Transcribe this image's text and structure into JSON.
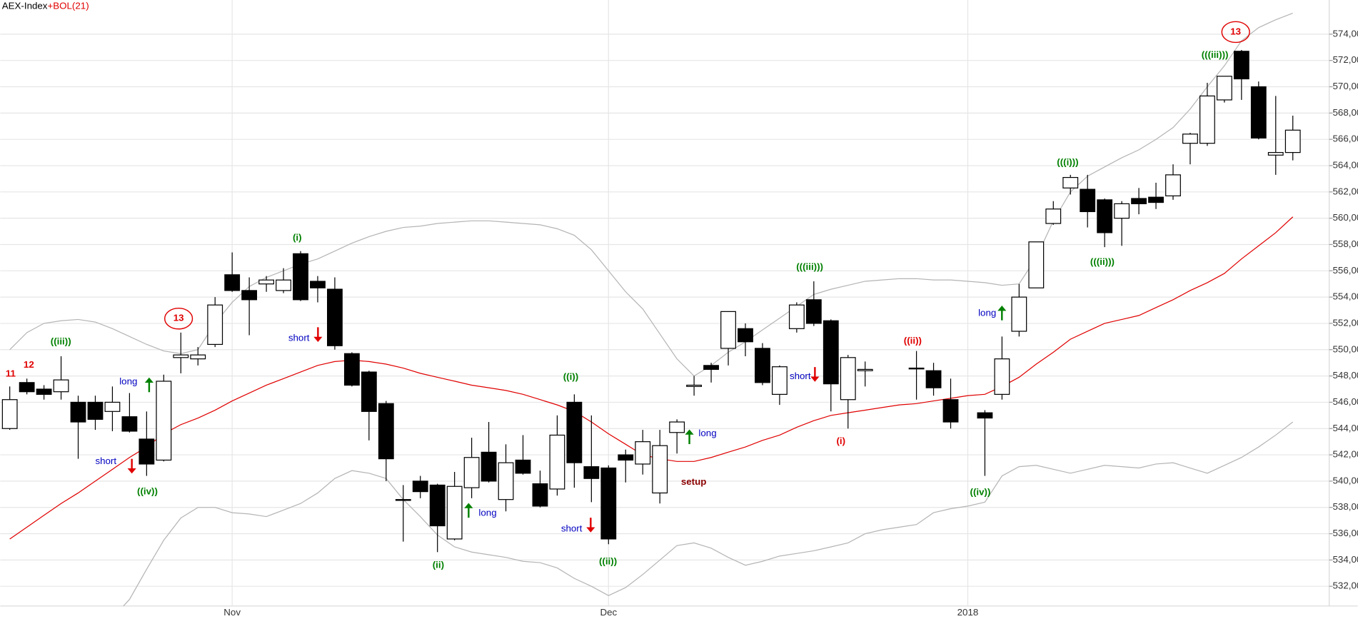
{
  "chart_data": {
    "type": "candlestick",
    "title": "AEX-Index",
    "indicator": "+BOL(21)",
    "title_color": "#000000",
    "indicator_color": "#e00000",
    "categories": [
      null,
      null,
      null,
      null,
      null,
      null,
      null,
      null,
      null,
      null,
      null,
      null,
      null,
      "Nov",
      null,
      null,
      null,
      null,
      null,
      null,
      null,
      null,
      null,
      null,
      null,
      null,
      null,
      null,
      null,
      null,
      null,
      null,
      null,
      null,
      null,
      "Dec",
      null,
      null,
      null,
      null,
      null,
      null,
      null,
      null,
      null,
      null,
      null,
      null,
      null,
      null,
      null,
      null,
      null,
      null,
      null,
      null,
      "2018",
      null,
      null,
      null,
      null,
      null,
      null,
      null,
      null,
      null,
      null,
      null,
      null,
      null,
      null,
      null,
      null,
      null,
      null,
      null
    ],
    "open": [
      544.0,
      547.5,
      547.0,
      546.8,
      546.0,
      546.0,
      545.3,
      544.9,
      543.2,
      541.6,
      549.4,
      549.3,
      550.4,
      555.7,
      554.5,
      555.0,
      554.5,
      557.3,
      555.2,
      554.6,
      549.7,
      548.3,
      545.9,
      538.6,
      540.0,
      539.7,
      535.6,
      539.5,
      542.2,
      538.6,
      541.6,
      539.8,
      539.4,
      546.0,
      541.1,
      541.0,
      542.0,
      541.3,
      539.1,
      543.7,
      547.2,
      548.8,
      550.1,
      551.6,
      550.1,
      546.6,
      551.6,
      553.8,
      552.2,
      546.2,
      548.4,
      null,
      null,
      548.6,
      548.4,
      546.2,
      null,
      545.2,
      546.6,
      551.4,
      554.7,
      559.6,
      562.3,
      562.2,
      561.4,
      560.0,
      561.5,
      561.6,
      561.7,
      565.7,
      565.7,
      569.0,
      572.7,
      570.0,
      564.8,
      565.0
    ],
    "high": [
      547.2,
      547.8,
      547.3,
      549.5,
      546.5,
      546.5,
      547.2,
      546.7,
      545.3,
      548.1,
      551.3,
      550.2,
      554.0,
      557.4,
      555.5,
      555.6,
      556.2,
      557.5,
      555.6,
      555.5,
      549.8,
      548.4,
      546.1,
      539.7,
      540.4,
      539.8,
      540.7,
      543.3,
      544.5,
      542.8,
      543.5,
      540.8,
      545.0,
      546.6,
      545.0,
      541.2,
      542.4,
      543.9,
      543.9,
      544.7,
      548.0,
      549.0,
      552.9,
      552.0,
      550.5,
      548.8,
      553.6,
      555.2,
      552.3,
      549.6,
      549.1,
      null,
      null,
      549.9,
      549.0,
      547.8,
      null,
      545.4,
      551.0,
      555.0,
      558.2,
      561.3,
      563.3,
      563.3,
      561.5,
      561.3,
      562.3,
      562.7,
      564.1,
      566.5,
      570.3,
      570.8,
      572.8,
      570.4,
      569.3,
      567.8
    ],
    "low": [
      543.9,
      546.6,
      546.2,
      546.2,
      541.7,
      543.9,
      543.8,
      543.7,
      540.4,
      541.5,
      548.2,
      548.8,
      550.2,
      554.4,
      551.1,
      554.4,
      554.3,
      553.7,
      553.6,
      550.0,
      547.2,
      543.1,
      540.0,
      535.4,
      538.7,
      534.6,
      535.5,
      538.7,
      539.9,
      537.7,
      540.5,
      538.0,
      538.9,
      539.5,
      538.4,
      535.2,
      539.9,
      540.5,
      538.3,
      542.1,
      546.5,
      547.5,
      548.8,
      549.5,
      547.3,
      545.8,
      551.3,
      551.8,
      545.3,
      544.0,
      547.2,
      null,
      null,
      546.2,
      546.5,
      544.0,
      null,
      540.4,
      546.2,
      551.0,
      554.7,
      559.5,
      561.8,
      559.3,
      557.8,
      557.9,
      560.3,
      560.7,
      561.4,
      564.1,
      565.5,
      568.8,
      569.0,
      566.0,
      563.3,
      564.4
    ],
    "close": [
      546.2,
      546.8,
      546.6,
      547.7,
      544.5,
      544.7,
      546.0,
      543.8,
      541.3,
      547.6,
      549.6,
      549.6,
      553.4,
      554.5,
      553.8,
      555.3,
      555.3,
      553.8,
      554.7,
      550.3,
      547.3,
      545.3,
      541.7,
      538.55,
      539.2,
      536.6,
      539.6,
      541.8,
      540.0,
      541.4,
      540.6,
      538.1,
      543.5,
      541.4,
      540.2,
      535.6,
      541.6,
      543.0,
      542.7,
      544.5,
      547.3,
      548.5,
      552.9,
      550.6,
      547.5,
      548.7,
      553.4,
      552.0,
      547.4,
      549.4,
      548.5,
      null,
      null,
      548.6,
      547.1,
      544.5,
      null,
      544.8,
      549.3,
      554.0,
      558.2,
      560.7,
      563.1,
      560.5,
      558.9,
      561.1,
      561.1,
      561.2,
      563.3,
      566.4,
      569.3,
      570.8,
      570.6,
      566.1,
      565.0,
      566.7
    ],
    "bands": {
      "middle_color": "#e00000",
      "band_color": "#b4b4b4",
      "middle": [
        535.6,
        536.5,
        537.4,
        538.3,
        539.1,
        540.0,
        540.9,
        541.8,
        542.6,
        543.6,
        544.3,
        544.8,
        545.4,
        546.1,
        546.7,
        547.3,
        547.8,
        548.3,
        548.8,
        549.1,
        549.2,
        549.1,
        548.9,
        548.6,
        548.2,
        547.9,
        547.6,
        547.3,
        547.1,
        546.9,
        546.6,
        546.2,
        545.8,
        545.3,
        544.5,
        543.6,
        542.8,
        542.0,
        541.7,
        541.5,
        541.5,
        541.8,
        542.2,
        542.6,
        543.1,
        543.5,
        544.1,
        544.6,
        545.0,
        545.2,
        545.4,
        545.6,
        545.8,
        545.9,
        546.1,
        546.3,
        546.5,
        546.6,
        547.2,
        547.9,
        548.9,
        549.8,
        550.8,
        551.4,
        552.0,
        552.3,
        552.6,
        553.2,
        553.8,
        554.5,
        555.1,
        555.8,
        556.9,
        557.9,
        558.9,
        560.1
      ],
      "upper": [
        550.0,
        551.3,
        552.0,
        552.2,
        552.3,
        552.1,
        551.6,
        551.0,
        550.4,
        549.9,
        549.7,
        550.0,
        552.0,
        553.6,
        554.8,
        555.5,
        556.0,
        556.5,
        556.9,
        557.5,
        558.1,
        558.6,
        559.0,
        559.3,
        559.4,
        559.6,
        559.7,
        559.8,
        559.8,
        559.7,
        559.6,
        559.5,
        559.2,
        558.7,
        557.6,
        556.0,
        554.4,
        553.1,
        551.2,
        549.3,
        548.0,
        548.8,
        549.8,
        550.6,
        551.5,
        552.4,
        553.3,
        554.2,
        554.6,
        554.9,
        555.2,
        555.3,
        555.4,
        555.4,
        555.3,
        555.3,
        555.2,
        555.1,
        554.9,
        555.0,
        557.0,
        559.8,
        562.0,
        563.2,
        563.9,
        564.6,
        565.2,
        566.0,
        566.9,
        568.3,
        570.0,
        571.6,
        573.5,
        574.5,
        575.1,
        575.6
      ],
      "lower": [
        null,
        null,
        null,
        null,
        null,
        null,
        529.6,
        531.0,
        533.3,
        535.5,
        537.2,
        538.0,
        538.0,
        537.6,
        537.5,
        537.3,
        537.8,
        538.3,
        539.1,
        540.2,
        540.8,
        540.6,
        540.2,
        538.6,
        537.3,
        535.9,
        535.0,
        534.6,
        534.4,
        534.2,
        533.9,
        533.8,
        533.4,
        532.6,
        532.0,
        531.3,
        531.9,
        532.9,
        534.0,
        535.1,
        535.3,
        534.9,
        534.2,
        533.6,
        533.9,
        534.3,
        534.5,
        534.7,
        535.0,
        535.3,
        536.0,
        536.3,
        536.5,
        536.7,
        537.6,
        537.9,
        538.1,
        538.4,
        540.4,
        541.1,
        541.2,
        540.9,
        540.6,
        540.9,
        541.2,
        541.1,
        541.0,
        541.3,
        541.4,
        541.0,
        540.6,
        541.2,
        541.8,
        542.6,
        543.5,
        544.5
      ]
    },
    "ylim": [
      530.5,
      576.6
    ],
    "yticks": [
      {
        "value": 532,
        "label": "532,00"
      },
      {
        "value": 534,
        "label": "534,00"
      },
      {
        "value": 536,
        "label": "536,00"
      },
      {
        "value": 538,
        "label": "538,00"
      },
      {
        "value": 540,
        "label": "540,00"
      },
      {
        "value": 542,
        "label": "542,00"
      },
      {
        "value": 544,
        "label": "544,00"
      },
      {
        "value": 546,
        "label": "546,00"
      },
      {
        "value": 548,
        "label": "548,00"
      },
      {
        "value": 550,
        "label": "550,00"
      },
      {
        "value": 552,
        "label": "552,00"
      },
      {
        "value": 554,
        "label": "554,00"
      },
      {
        "value": 556,
        "label": "556,00"
      },
      {
        "value": 558,
        "label": "558,00"
      },
      {
        "value": 560,
        "label": "560,00"
      },
      {
        "value": 562,
        "label": "562,00"
      },
      {
        "value": 564,
        "label": "564,00"
      },
      {
        "value": 566,
        "label": "566,00"
      },
      {
        "value": 568,
        "label": "568,00"
      },
      {
        "value": 570,
        "label": "570,00"
      },
      {
        "value": 572,
        "label": "572,00"
      },
      {
        "value": 574,
        "label": "574,00"
      }
    ],
    "grid": true,
    "up_color": "#ffffff",
    "down_color": "#000000",
    "annotations": [
      {
        "text": "11",
        "color": "#e00000"
      },
      {
        "text": "12",
        "color": "#e00000"
      },
      {
        "text": "((iii))",
        "color": "#008000"
      },
      {
        "text": "long",
        "color": "#0000c0"
      },
      {
        "text": "short",
        "color": "#0000c0"
      },
      {
        "text": "((iv))",
        "color": "#008000"
      },
      {
        "text": "13",
        "color": "#e00000",
        "circled": true
      },
      {
        "text": "(i)",
        "color": "#008000"
      },
      {
        "text": "short",
        "color": "#0000c0"
      },
      {
        "text": "(ii)",
        "color": "#008000"
      },
      {
        "text": "long",
        "color": "#0000c0"
      },
      {
        "text": "((i))",
        "color": "#008000"
      },
      {
        "text": "short",
        "color": "#0000c0"
      },
      {
        "text": "((ii))",
        "color": "#008000"
      },
      {
        "text": "long",
        "color": "#0000c0"
      },
      {
        "text": "setup",
        "color": "#8b0000"
      },
      {
        "text": "(((iii)))",
        "color": "#008000"
      },
      {
        "text": "short",
        "color": "#0000c0"
      },
      {
        "text": "(i)",
        "color": "#e00000"
      },
      {
        "text": "((ii))",
        "color": "#e00000"
      },
      {
        "text": "long",
        "color": "#0000c0"
      },
      {
        "text": "((iv))",
        "color": "#008000"
      },
      {
        "text": "(((i)))",
        "color": "#008000"
      },
      {
        "text": "(((ii)))",
        "color": "#008000"
      },
      {
        "text": "(((iii)))",
        "color": "#008000"
      },
      {
        "text": "13",
        "color": "#e00000",
        "circled": true
      }
    ]
  }
}
